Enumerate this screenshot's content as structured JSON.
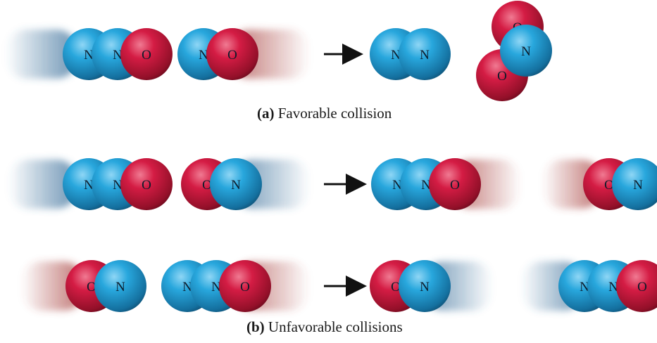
{
  "colors": {
    "nitrogen": "#1e9fd6",
    "oxygen": "#d0193d",
    "nitrogen_blur": "#3a6f9a",
    "oxygen_blur": "#a8423f",
    "text": "#1a1a1a"
  },
  "atoms": {
    "nitrogen": "N",
    "oxygen": "O"
  },
  "arrow_icon": "right-arrow-icon",
  "captions": {
    "a_letter": "(a)",
    "a_text": "Favorable collision",
    "b_letter": "(b)",
    "b_text": "Unfavorable collisions"
  }
}
